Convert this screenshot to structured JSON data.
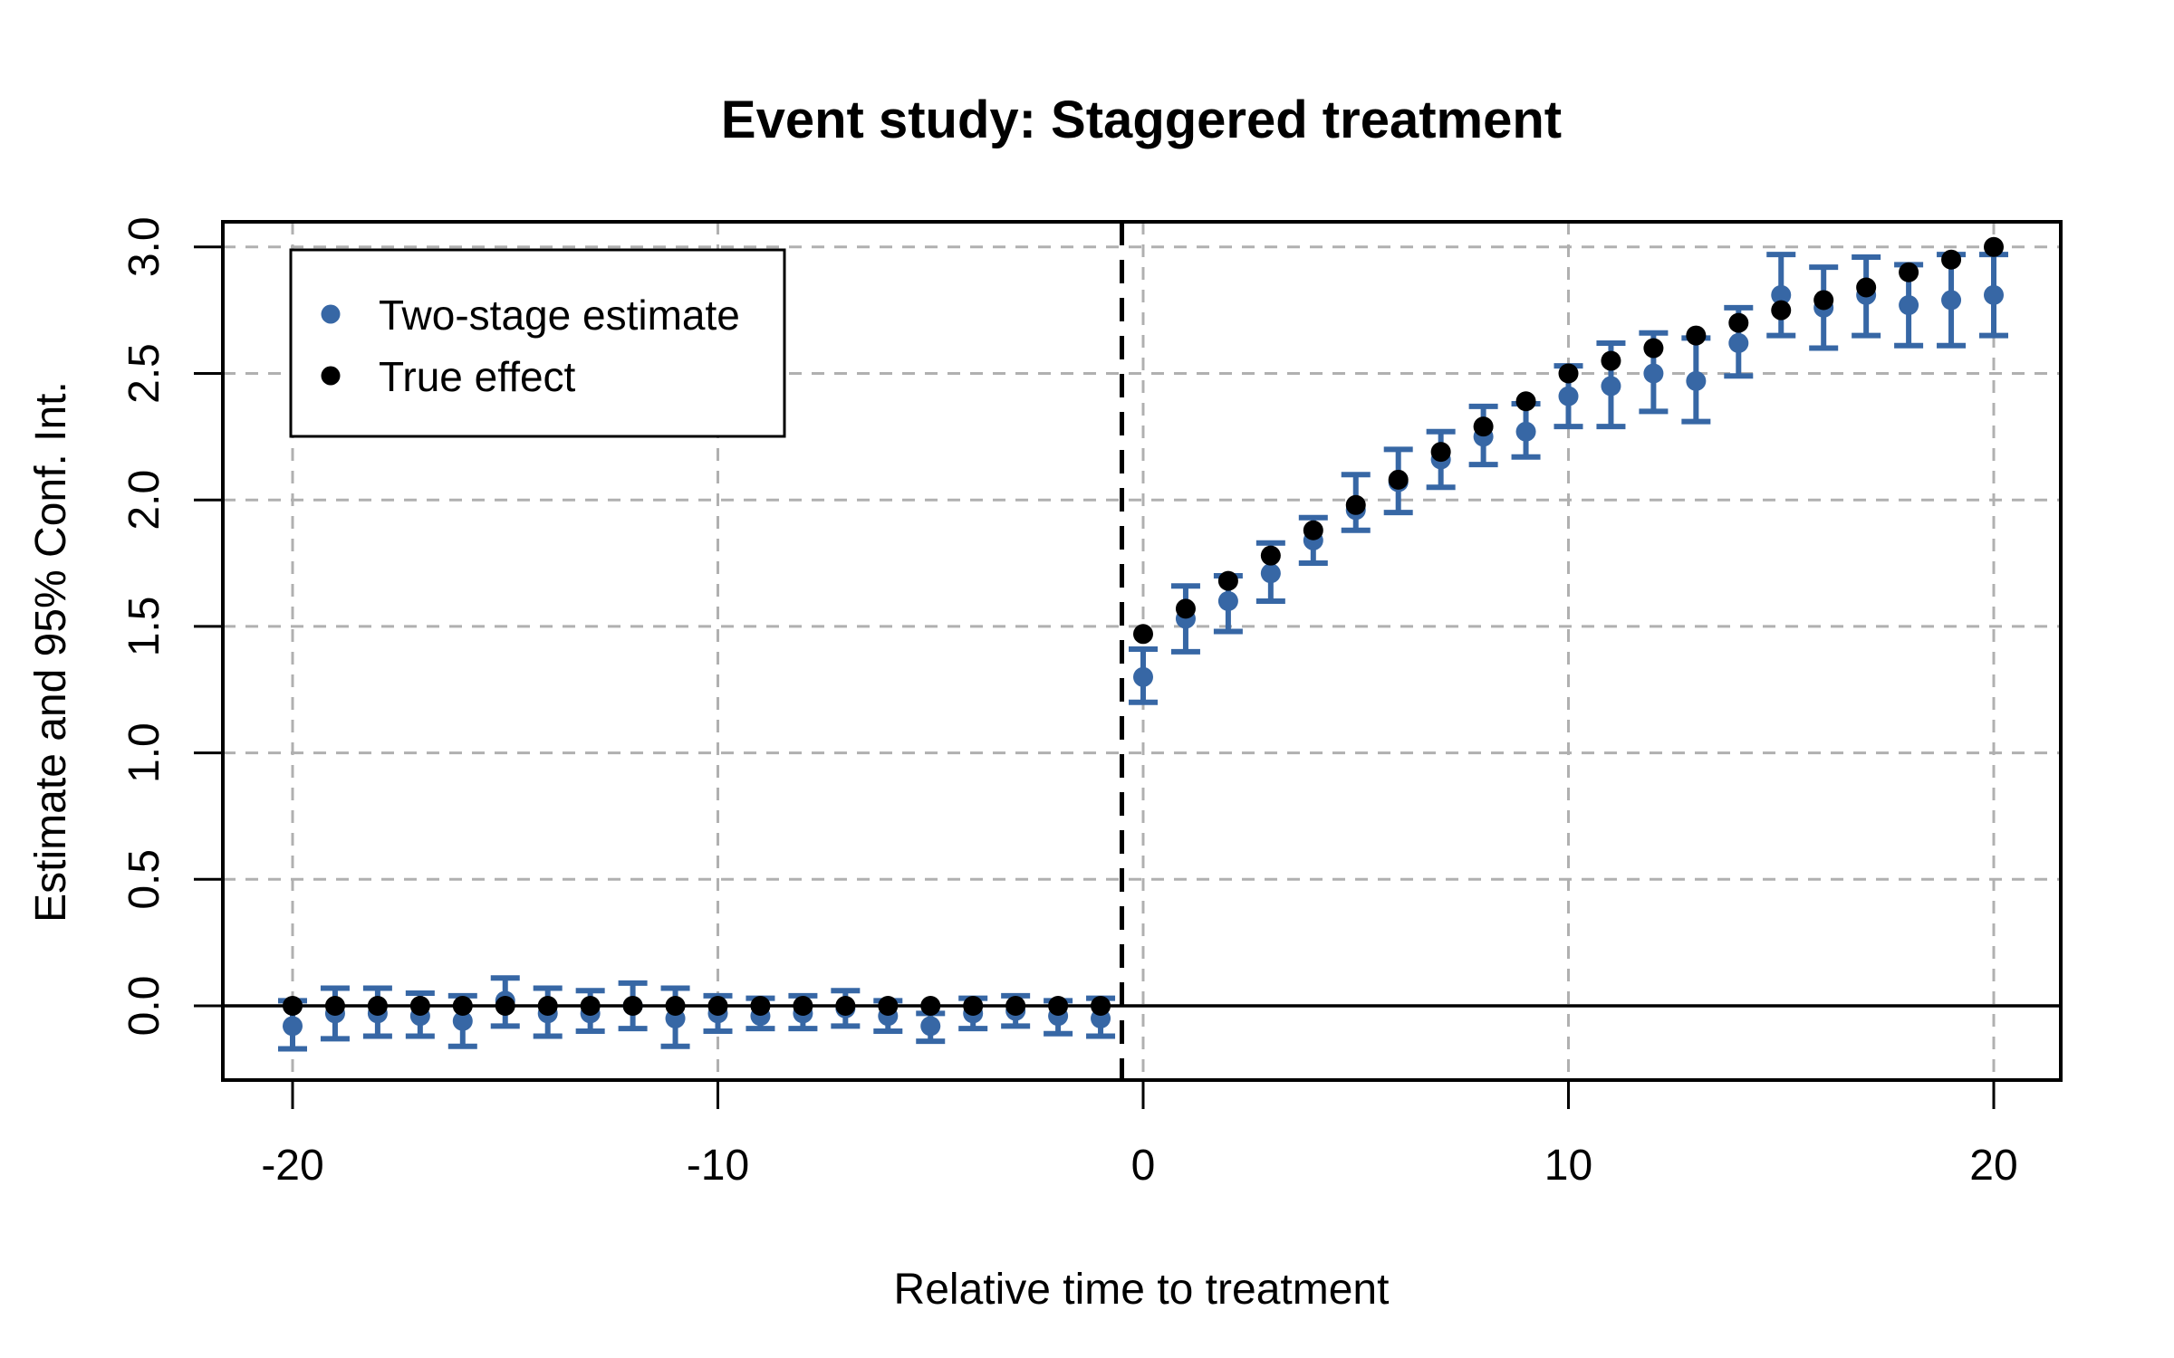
{
  "title": "Event study: Staggered treatment",
  "axes": {
    "x_label": "Relative time to treatment",
    "y_label": "Estimate and 95% Conf. Int.",
    "x_tick_labels": [
      "-20",
      "-10",
      "0",
      "10",
      "20"
    ],
    "y_tick_labels": [
      "0.0",
      "0.5",
      "1.0",
      "1.5",
      "2.0",
      "2.5",
      "3.0"
    ]
  },
  "legend": {
    "items": [
      {
        "label": "Two-stage estimate",
        "color": "#3767A5"
      },
      {
        "label": "True effect",
        "color": "#000000"
      }
    ]
  },
  "colors": {
    "estimate": "#3767A5",
    "true_effect": "#000000",
    "grid": "#b0b0b0",
    "axis": "#000000",
    "background": "#ffffff"
  },
  "chart_data": {
    "type": "scatter",
    "title": "Event study: Staggered treatment",
    "xlabel": "Relative time to treatment",
    "ylabel": "Estimate and 95% Conf. Int.",
    "grid": true,
    "legend_position": "top-left",
    "xlim": [
      -21.6,
      21.6
    ],
    "ylim": [
      -0.29,
      3.04
    ],
    "x_ticks": [
      -20,
      -10,
      0,
      10,
      20
    ],
    "y_ticks": [
      0,
      0.5,
      1,
      1.5,
      2,
      2.5,
      3
    ],
    "zero_line_y": 0,
    "treatment_line_x": -0.5,
    "x": [
      -20,
      -19,
      -18,
      -17,
      -16,
      -15,
      -14,
      -13,
      -12,
      -11,
      -10,
      -9,
      -8,
      -7,
      -6,
      -5,
      -4,
      -3,
      -2,
      -1,
      0,
      1,
      2,
      3,
      4,
      5,
      6,
      7,
      8,
      9,
      10,
      11,
      12,
      13,
      14,
      15,
      16,
      17,
      18,
      19,
      20
    ],
    "series": [
      {
        "name": "Two-stage estimate",
        "marker": "dot",
        "color": "#3767A5",
        "values": [
          -0.08,
          -0.03,
          -0.03,
          -0.04,
          -0.06,
          0.02,
          -0.03,
          -0.03,
          0.0,
          -0.05,
          -0.03,
          -0.04,
          -0.03,
          -0.01,
          -0.04,
          -0.08,
          -0.03,
          -0.02,
          -0.04,
          -0.05,
          1.3,
          1.53,
          1.6,
          1.71,
          1.84,
          1.96,
          2.07,
          2.16,
          2.25,
          2.27,
          2.41,
          2.45,
          2.5,
          2.47,
          2.62,
          2.81,
          2.76,
          2.81,
          2.77,
          2.79,
          2.81
        ],
        "ci_low": [
          -0.17,
          -0.13,
          -0.12,
          -0.12,
          -0.16,
          -0.08,
          -0.12,
          -0.1,
          -0.09,
          -0.16,
          -0.1,
          -0.09,
          -0.09,
          -0.08,
          -0.1,
          -0.14,
          -0.09,
          -0.08,
          -0.11,
          -0.12,
          1.2,
          1.4,
          1.48,
          1.6,
          1.75,
          1.88,
          1.95,
          2.05,
          2.14,
          2.17,
          2.29,
          2.29,
          2.35,
          2.31,
          2.49,
          2.65,
          2.6,
          2.65,
          2.61,
          2.61,
          2.65
        ],
        "ci_high": [
          0.02,
          0.07,
          0.07,
          0.05,
          0.04,
          0.11,
          0.07,
          0.06,
          0.09,
          0.07,
          0.04,
          0.03,
          0.04,
          0.06,
          0.02,
          -0.03,
          0.03,
          0.04,
          0.02,
          0.03,
          1.41,
          1.66,
          1.7,
          1.83,
          1.93,
          2.1,
          2.2,
          2.27,
          2.37,
          2.38,
          2.53,
          2.62,
          2.66,
          2.64,
          2.76,
          2.97,
          2.92,
          2.96,
          2.93,
          2.97,
          2.97
        ]
      },
      {
        "name": "True effect",
        "marker": "dot",
        "color": "#000000",
        "values": [
          0,
          0,
          0,
          0,
          0,
          0,
          0,
          0,
          0,
          0,
          0,
          0,
          0,
          0,
          0,
          0,
          0,
          0,
          0,
          0,
          1.47,
          1.57,
          1.68,
          1.78,
          1.88,
          1.98,
          2.08,
          2.19,
          2.29,
          2.39,
          2.5,
          2.55,
          2.6,
          2.65,
          2.7,
          2.75,
          2.79,
          2.84,
          2.9,
          2.95,
          3.0
        ]
      }
    ]
  }
}
